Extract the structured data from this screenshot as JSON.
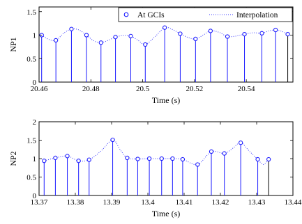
{
  "chart_data": [
    {
      "type": "stem",
      "xlabel": "Time (s)",
      "ylabel": "NP1",
      "xlim": [
        20.46,
        20.558
      ],
      "ylim": [
        0,
        1.6
      ],
      "xticks": [
        20.46,
        20.48,
        20.5,
        20.52,
        20.54
      ],
      "xtick_labels": [
        "20.46",
        "20.48",
        "20.5",
        "20.52",
        "20.54"
      ],
      "yticks": [
        0,
        0.5,
        1,
        1.5
      ],
      "ytick_labels": [
        "0",
        "0.5",
        "1",
        "1.5"
      ],
      "legend": {
        "placement": "top-right",
        "entries": [
          {
            "label": "At GCIs",
            "marker": "circle"
          },
          {
            "label": "Interpolation",
            "marker": "dotted-line"
          }
        ]
      },
      "series": [
        {
          "name": "At GCIs",
          "x": [
            20.461,
            20.4665,
            20.4725,
            20.4783,
            20.4839,
            20.4895,
            20.4954,
            20.501,
            20.5085,
            20.5145,
            20.5204,
            20.5262,
            20.5327,
            20.5393,
            20.546,
            20.5513,
            20.556
          ],
          "y": [
            1.0,
            0.89,
            1.13,
            1.0,
            0.84,
            0.96,
            0.98,
            0.8,
            1.16,
            1.03,
            0.92,
            1.09,
            0.97,
            1.02,
            1.04,
            1.11,
            1.02
          ]
        }
      ],
      "interpolation": {
        "name": "Interpolation",
        "style": "dotted",
        "color": "#3a3aff",
        "x": [
          20.461,
          20.4637,
          20.4665,
          20.4695,
          20.4725,
          20.4754,
          20.4783,
          20.4811,
          20.4839,
          20.4867,
          20.4895,
          20.4925,
          20.4954,
          20.4982,
          20.501,
          20.5048,
          20.5085,
          20.5115,
          20.5145,
          20.5175,
          20.5204,
          20.5233,
          20.5262,
          20.5295,
          20.5327,
          20.536,
          20.5393,
          20.5427,
          20.546,
          20.5487,
          20.5513,
          20.5537,
          20.556
        ],
        "y": [
          1.0,
          0.91,
          0.89,
          1.04,
          1.13,
          1.11,
          1.0,
          0.88,
          0.84,
          0.89,
          0.96,
          0.99,
          0.98,
          0.89,
          0.8,
          0.97,
          1.16,
          1.12,
          1.03,
          0.95,
          0.92,
          1.0,
          1.09,
          1.06,
          0.97,
          0.98,
          1.02,
          1.05,
          1.04,
          1.09,
          1.11,
          1.08,
          1.02
        ]
      }
    },
    {
      "type": "stem",
      "xlabel": "Time (s)",
      "ylabel": "NP2",
      "xlim": [
        13.37,
        13.44
      ],
      "ylim": [
        0,
        2
      ],
      "xticks": [
        13.37,
        13.38,
        13.39,
        13.4,
        13.41,
        13.42,
        13.43,
        13.44
      ],
      "xtick_labels": [
        "13.37",
        "13.38",
        "13.39",
        "13.4",
        "13.41",
        "13.42",
        "13.43",
        "13.44"
      ],
      "yticks": [
        0,
        0.5,
        1,
        1.5,
        2
      ],
      "ytick_labels": [
        "0",
        "0.5",
        "1",
        "1.5",
        "2"
      ],
      "series": [
        {
          "name": "At GCIs",
          "x": [
            13.3714,
            13.3745,
            13.3778,
            13.3809,
            13.3838,
            13.3903,
            13.3943,
            13.3972,
            13.4004,
            13.4038,
            13.4068,
            13.4096,
            13.4137,
            13.4175,
            13.4211,
            13.4256,
            13.4303,
            13.4333
          ],
          "y": [
            0.94,
            1.02,
            1.07,
            0.94,
            0.97,
            1.51,
            1.02,
            0.99,
            1.0,
            1.0,
            1.0,
            0.98,
            0.84,
            1.19,
            1.14,
            1.43,
            0.98,
            0.98
          ]
        }
      ],
      "interpolation": {
        "name": "Interpolation",
        "style": "dotted",
        "color": "#3a3aff",
        "x": [
          13.3714,
          13.3745,
          13.3778,
          13.3809,
          13.3838,
          13.387,
          13.3903,
          13.3923,
          13.3943,
          13.3972,
          13.4004,
          13.4038,
          13.4068,
          13.4096,
          13.4137,
          13.4175,
          13.4211,
          13.4234,
          13.4256,
          13.428,
          13.4303,
          13.4318,
          13.4333
        ],
        "y": [
          0.94,
          1.02,
          1.07,
          0.94,
          0.97,
          1.2,
          1.51,
          1.25,
          1.02,
          0.99,
          1.0,
          1.0,
          1.0,
          0.98,
          0.84,
          1.19,
          1.14,
          1.28,
          1.43,
          1.2,
          0.98,
          0.84,
          0.98
        ]
      }
    }
  ]
}
